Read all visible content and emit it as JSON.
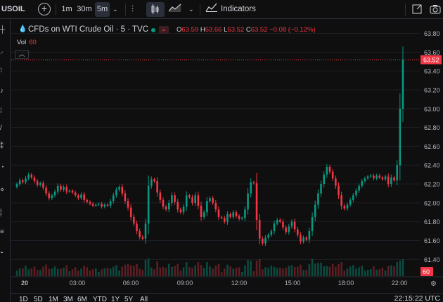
{
  "toolbar": {
    "symbol": "USOIL",
    "intervals": [
      "1m",
      "30m",
      "5m"
    ],
    "active_interval": "5m",
    "indicators_label": "Indicators",
    "icons": [
      "add-symbol-icon",
      "chevron-down-icon",
      "bar-style-icon",
      "candles-icon",
      "area-icon",
      "indicators-icon",
      "fullscreen-icon",
      "snapshot-icon"
    ]
  },
  "legend": {
    "title": "CFDs on WTI Crude Oil · 5 · TVC",
    "open_label": "O",
    "open": "63.59",
    "high_label": "H",
    "high": "63.66",
    "low_label": "L",
    "low": "63.52",
    "close_label": "C",
    "close": "63.52",
    "change": "−0.08 (−0.12%)",
    "vol_label": "Vol",
    "vol_value": "60"
  },
  "price_tag": "63.52",
  "volume_tag": "60",
  "ranges": [
    "1D",
    "5D",
    "1M",
    "3M",
    "6M",
    "YTD",
    "1Y",
    "5Y",
    "All"
  ],
  "clock": "22:15:22 UTC",
  "colors": {
    "up": "#089981",
    "down": "#f23645",
    "background": "#0f0f0f",
    "grid": "#1c1f26"
  },
  "chart_data": {
    "type": "candlestick",
    "x_tick_labels": [
      "20",
      "03:00",
      "06:00",
      "09:00",
      "12:00",
      "15:00",
      "18:00",
      "22:00"
    ],
    "y_tick_labels": [
      "63.80",
      "63.60",
      "63.40",
      "63.20",
      "63.00",
      "62.80",
      "62.60",
      "62.40",
      "62.20",
      "62.00",
      "61.80",
      "61.60",
      "61.40"
    ],
    "ylim": [
      61.27,
      63.87
    ],
    "grid": true,
    "last_price": 63.52,
    "close_series": [
      62.2,
      62.24,
      62.22,
      62.26,
      62.3,
      62.27,
      62.23,
      62.19,
      62.21,
      62.16,
      62.1,
      62.05,
      62.08,
      62.12,
      62.18,
      62.14,
      62.17,
      62.12,
      62.13,
      62.11,
      62.08,
      62.05,
      62.09,
      62.03,
      62.01,
      61.99,
      61.97,
      61.98,
      61.99,
      61.96,
      61.98,
      61.97,
      62.02,
      62.08,
      62.14,
      62.17,
      62.1,
      62.02,
      61.95,
      61.85,
      61.78,
      61.7,
      61.64,
      61.62,
      61.78,
      62.18,
      62.25,
      62.23,
      62.11,
      62.03,
      61.96,
      61.93,
      62.0,
      62.08,
      62.01,
      61.93,
      61.9,
      61.96,
      62.08,
      62.06,
      62.0,
      62.08,
      61.97,
      61.85,
      61.9,
      62.02,
      62.05,
      62.0,
      61.93,
      61.85,
      61.84,
      61.8,
      61.88,
      61.85,
      61.9,
      61.86,
      61.83,
      61.84,
      61.93,
      62.1,
      62.22,
      62.21,
      61.82,
      61.62,
      61.57,
      61.63,
      61.66,
      61.7,
      61.78,
      61.82,
      61.8,
      61.74,
      61.69,
      61.75,
      61.8,
      61.72,
      61.66,
      61.59,
      61.63,
      61.61,
      61.7,
      61.85,
      61.98,
      62.1,
      62.2,
      62.3,
      62.38,
      62.33,
      62.26,
      62.18,
      62.08,
      61.97,
      61.94,
      61.98,
      62.03,
      62.08,
      62.13,
      62.18,
      62.23,
      62.26,
      62.28,
      62.29,
      62.26,
      62.29,
      62.27,
      62.25,
      62.28,
      62.2,
      62.27,
      62.24,
      62.4,
      63.0,
      63.52
    ],
    "high_last_candle": 63.66,
    "volume_axis_label": "60"
  }
}
